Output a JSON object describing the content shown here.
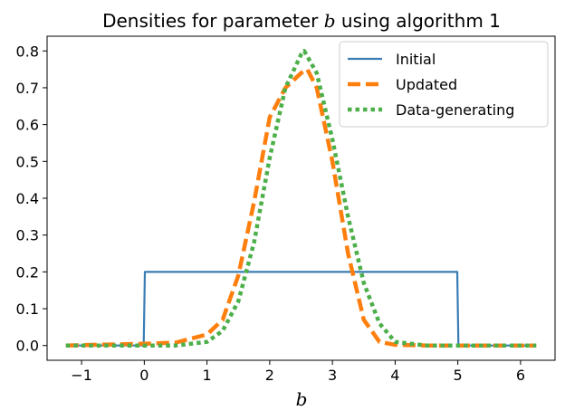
{
  "chart_data": {
    "type": "line",
    "title_prefix": "Densities for parameter ",
    "title_variable": "b",
    "title_suffix": " using algorithm 1",
    "xlabel": "b",
    "ylabel": "",
    "xlim": [
      -1.55,
      6.55
    ],
    "ylim": [
      -0.04,
      0.84
    ],
    "xticks": [
      -1,
      0,
      1,
      2,
      3,
      4,
      5,
      6
    ],
    "xtick_labels": [
      "−1",
      "0",
      "1",
      "2",
      "3",
      "4",
      "5",
      "6"
    ],
    "yticks": [
      0.0,
      0.1,
      0.2,
      0.3,
      0.4,
      0.5,
      0.6,
      0.7,
      0.8
    ],
    "ytick_labels": [
      "0.0",
      "0.1",
      "0.2",
      "0.3",
      "0.4",
      "0.5",
      "0.6",
      "0.7",
      "0.8"
    ],
    "grid": false,
    "legend_position": "top-right",
    "series": [
      {
        "name": "Initial",
        "color": "#3a7db4",
        "style": "solid",
        "x": [
          -1.25,
          -0.01,
          0.01,
          4.99,
          5.01,
          6.25
        ],
        "y": [
          0.0,
          0.0,
          0.2,
          0.2,
          0.0,
          0.0
        ]
      },
      {
        "name": "Updated",
        "color": "#ff7f0e",
        "style": "dashed",
        "x": [
          -1.25,
          0,
          0.5,
          1.0,
          1.25,
          1.5,
          1.75,
          2.0,
          2.25,
          2.5,
          2.6,
          2.75,
          3.0,
          3.25,
          3.5,
          3.75,
          4.0,
          4.5,
          5.0,
          6.25
        ],
        "y": [
          0.0,
          0.005,
          0.008,
          0.03,
          0.07,
          0.19,
          0.39,
          0.62,
          0.7,
          0.74,
          0.75,
          0.7,
          0.5,
          0.25,
          0.07,
          0.01,
          0.002,
          0.0,
          0.0,
          0.0
        ]
      },
      {
        "name": "Data-generating",
        "color": "#4daf4a",
        "style": "dotted",
        "x": [
          -1.25,
          0,
          0.5,
          1.0,
          1.25,
          1.5,
          1.75,
          2.0,
          2.25,
          2.5,
          2.55,
          2.75,
          3.0,
          3.25,
          3.5,
          3.75,
          4.0,
          4.5,
          5.0,
          6.25
        ],
        "y": [
          0.0,
          0.0,
          0.0,
          0.01,
          0.04,
          0.12,
          0.28,
          0.51,
          0.7,
          0.79,
          0.8,
          0.74,
          0.56,
          0.35,
          0.17,
          0.06,
          0.01,
          0.0,
          0.0,
          0.0
        ]
      }
    ]
  }
}
